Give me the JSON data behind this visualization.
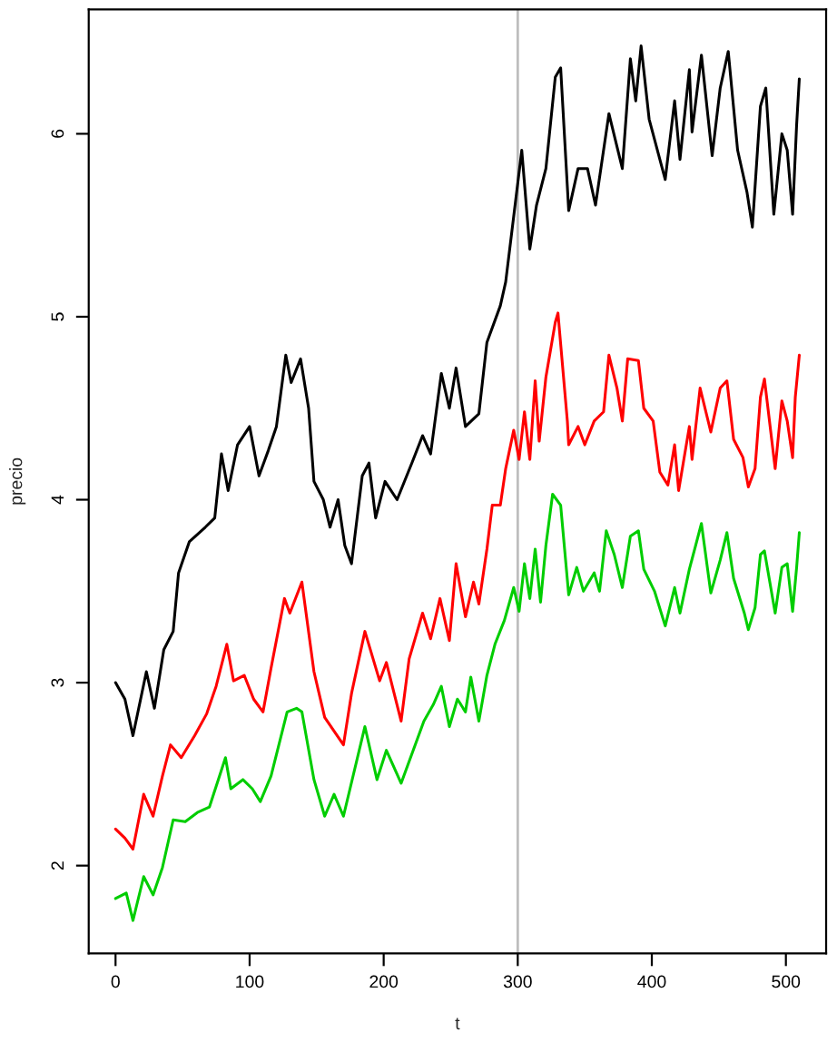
{
  "chart_data": {
    "type": "line",
    "xlabel": "t",
    "ylabel": "precio",
    "xlim": [
      -20,
      530
    ],
    "ylim": [
      1.52,
      6.68
    ],
    "xticks": [
      0,
      100,
      200,
      300,
      400,
      500
    ],
    "yticks": [
      2,
      3,
      4,
      5,
      6
    ],
    "grid": false,
    "legend": false,
    "marker": "none",
    "line_style": "solid",
    "ref_lines": [
      {
        "axis": "x",
        "value": 300,
        "color": "#bebebe"
      }
    ],
    "series": [
      {
        "color": "#000000",
        "x": [
          0,
          7,
          13,
          23,
          29,
          36,
          43,
          47,
          55,
          67,
          74,
          79,
          84,
          91,
          100,
          107,
          114,
          120,
          127,
          131,
          138,
          144,
          148,
          155,
          160,
          166,
          171,
          176,
          184,
          189,
          194,
          201,
          210,
          221,
          229,
          235,
          243,
          249,
          254,
          261,
          271,
          277,
          287,
          291,
          297,
          303,
          309,
          314,
          321,
          328,
          332,
          338,
          345,
          352,
          358,
          368,
          378,
          384,
          388,
          392,
          398,
          410,
          417,
          421,
          428,
          430,
          437,
          445,
          451,
          457,
          464,
          471,
          475,
          481,
          485,
          491,
          497,
          501,
          505,
          508,
          510
        ],
        "values": [
          3.0,
          2.91,
          2.71,
          3.06,
          2.86,
          3.18,
          3.28,
          3.6,
          3.77,
          3.85,
          3.9,
          4.25,
          4.05,
          4.3,
          4.4,
          4.13,
          4.27,
          4.4,
          4.79,
          4.64,
          4.77,
          4.5,
          4.1,
          4.0,
          3.85,
          4.0,
          3.75,
          3.65,
          4.13,
          4.2,
          3.9,
          4.1,
          4.0,
          4.2,
          4.35,
          4.25,
          4.69,
          4.5,
          4.72,
          4.4,
          4.47,
          4.86,
          5.06,
          5.19,
          5.55,
          5.91,
          5.37,
          5.61,
          5.81,
          6.31,
          6.36,
          5.58,
          5.81,
          5.81,
          5.61,
          6.11,
          5.81,
          6.41,
          6.18,
          6.48,
          6.08,
          5.75,
          6.18,
          5.86,
          6.35,
          6.01,
          6.43,
          5.88,
          6.25,
          6.45,
          5.91,
          5.68,
          5.49,
          6.15,
          6.25,
          5.56,
          6.0,
          5.91,
          5.56,
          6.05,
          6.3
        ]
      },
      {
        "color": "#ff0000",
        "x": [
          0,
          7,
          13,
          21,
          28,
          35,
          41,
          49,
          59,
          68,
          75,
          83,
          88,
          96,
          103,
          110,
          116,
          126,
          130,
          139,
          148,
          156,
          170,
          176,
          186,
          197,
          202,
          213,
          219,
          229,
          235,
          242,
          249,
          254,
          261,
          267,
          271,
          277,
          281,
          287,
          291,
          297,
          301,
          305,
          309,
          313,
          316,
          321,
          328,
          330,
          337,
          338,
          345,
          350,
          357,
          364,
          368,
          374,
          378,
          382,
          390,
          394,
          401,
          406,
          412,
          417,
          420,
          428,
          430,
          436,
          444,
          451,
          456,
          461,
          468,
          472,
          477,
          481,
          484,
          492,
          497,
          501,
          505,
          507,
          510
        ],
        "values": [
          2.2,
          2.15,
          2.09,
          2.39,
          2.27,
          2.49,
          2.66,
          2.59,
          2.71,
          2.83,
          2.98,
          3.21,
          3.01,
          3.04,
          2.91,
          2.84,
          3.08,
          3.46,
          3.38,
          3.55,
          3.06,
          2.81,
          2.66,
          2.94,
          3.28,
          3.01,
          3.11,
          2.79,
          3.13,
          3.38,
          3.24,
          3.46,
          3.23,
          3.65,
          3.36,
          3.55,
          3.43,
          3.73,
          3.97,
          3.97,
          4.17,
          4.38,
          4.22,
          4.48,
          4.22,
          4.65,
          4.32,
          4.67,
          4.97,
          5.02,
          4.43,
          4.3,
          4.4,
          4.3,
          4.43,
          4.48,
          4.79,
          4.61,
          4.43,
          4.77,
          4.76,
          4.5,
          4.43,
          4.15,
          4.08,
          4.3,
          4.05,
          4.4,
          4.22,
          4.61,
          4.37,
          4.61,
          4.65,
          4.33,
          4.23,
          4.07,
          4.17,
          4.56,
          4.66,
          4.17,
          4.54,
          4.43,
          4.23,
          4.56,
          4.79
        ]
      },
      {
        "color": "#00cd00",
        "x": [
          0,
          8,
          13,
          21,
          28,
          35,
          43,
          52,
          61,
          70,
          82,
          86,
          95,
          102,
          108,
          116,
          128,
          135,
          139,
          148,
          156,
          163,
          170,
          186,
          195,
          202,
          213,
          222,
          230,
          237,
          243,
          249,
          255,
          261,
          265,
          271,
          277,
          283,
          290,
          297,
          301,
          305,
          309,
          313,
          317,
          321,
          326,
          332,
          338,
          344,
          349,
          357,
          361,
          366,
          372,
          378,
          384,
          390,
          394,
          402,
          410,
          417,
          421,
          428,
          437,
          444,
          451,
          456,
          461,
          469,
          472,
          477,
          481,
          484,
          492,
          497,
          501,
          505,
          508,
          510
        ],
        "values": [
          1.82,
          1.85,
          1.7,
          1.94,
          1.84,
          1.99,
          2.25,
          2.24,
          2.29,
          2.32,
          2.59,
          2.42,
          2.47,
          2.42,
          2.35,
          2.49,
          2.84,
          2.86,
          2.84,
          2.47,
          2.27,
          2.39,
          2.27,
          2.76,
          2.47,
          2.63,
          2.45,
          2.63,
          2.79,
          2.88,
          2.98,
          2.76,
          2.91,
          2.84,
          3.03,
          2.79,
          3.04,
          3.21,
          3.34,
          3.52,
          3.39,
          3.65,
          3.46,
          3.73,
          3.44,
          3.75,
          4.03,
          3.97,
          3.48,
          3.63,
          3.5,
          3.6,
          3.5,
          3.83,
          3.7,
          3.52,
          3.8,
          3.83,
          3.62,
          3.5,
          3.31,
          3.52,
          3.38,
          3.62,
          3.87,
          3.49,
          3.67,
          3.82,
          3.57,
          3.38,
          3.29,
          3.41,
          3.7,
          3.72,
          3.38,
          3.63,
          3.65,
          3.39,
          3.63,
          3.82
        ]
      }
    ]
  }
}
